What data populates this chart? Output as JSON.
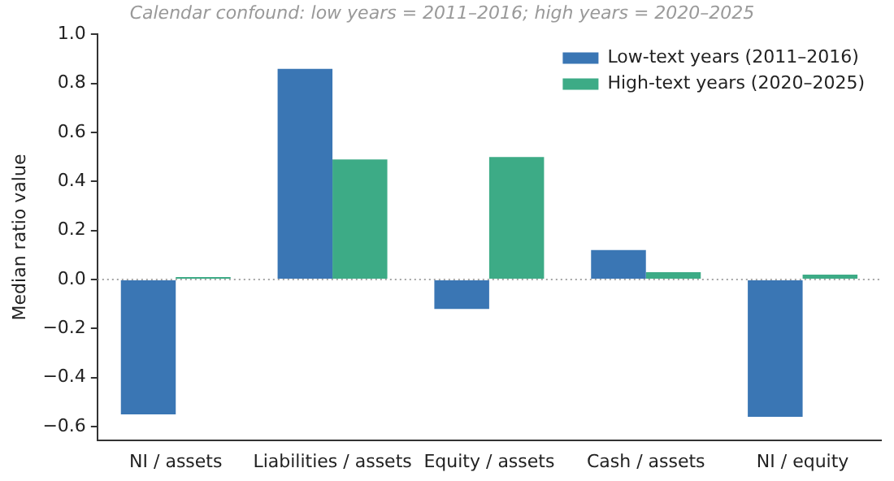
{
  "chart_data": {
    "type": "bar",
    "title": "Calendar confound: low years = 2011–2016; high years = 2020–2025",
    "ylabel": "Median ratio value",
    "categories": [
      "NI / assets",
      "Liabilities / assets",
      "Equity / assets",
      "Cash / assets",
      "NI / equity"
    ],
    "series": [
      {
        "name": "Low-text years (2011–2016)",
        "color": "#3a76b4",
        "values": [
          -0.55,
          0.86,
          -0.12,
          0.12,
          -0.56
        ]
      },
      {
        "name": "High-text years (2020–2025)",
        "color": "#3dab86",
        "values": [
          0.01,
          0.49,
          0.5,
          0.03,
          0.02
        ]
      }
    ],
    "ylim": [
      -0.655,
      1.0
    ],
    "yticks": [
      -0.6,
      -0.4,
      -0.2,
      {
        "value": 0,
        "label": "0.0"
      },
      0.2,
      0.4,
      0.6,
      0.8,
      {
        "value": 1,
        "label": "1.0"
      }
    ],
    "ref_lines": [
      {
        "axis": "y",
        "value": 0,
        "color": "#888888",
        "line_style": "dotted"
      }
    ],
    "grid": false,
    "legend": "top right"
  }
}
